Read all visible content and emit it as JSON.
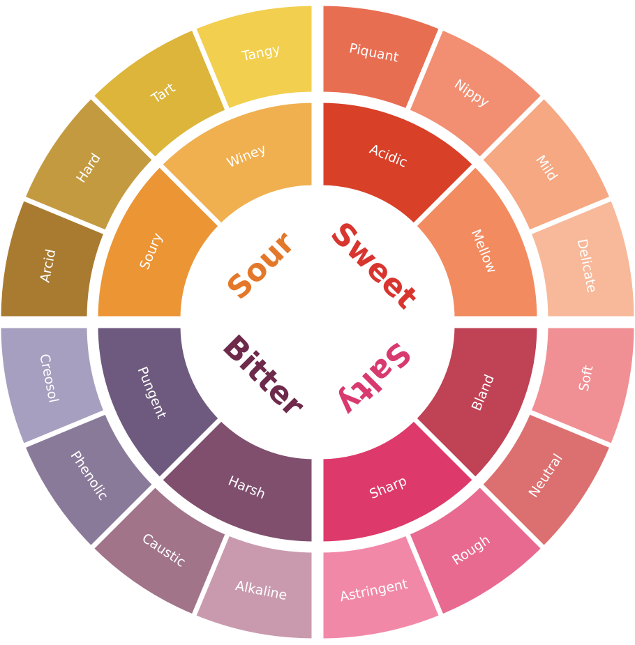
{
  "quadrants": [
    {
      "name": "Sweet",
      "color": "#d8352f",
      "inner": [
        {
          "label": "Acidic",
          "color": "#d84028"
        },
        {
          "label": "Mellow",
          "color": "#f28b60"
        }
      ],
      "outer": [
        {
          "label": "Piquant",
          "color": "#e86e52"
        },
        {
          "label": "Nippy",
          "color": "#f28e72"
        },
        {
          "label": "Mild",
          "color": "#f5a882"
        },
        {
          "label": "Delicate",
          "color": "#f7b99a"
        }
      ]
    },
    {
      "name": "Salty",
      "color": "#d83a70",
      "inner": [
        {
          "label": "Bland",
          "color": "#c04255"
        },
        {
          "label": "Sharp",
          "color": "#dd3a6b"
        }
      ],
      "outer": [
        {
          "label": "Soft",
          "color": "#f09094"
        },
        {
          "label": "Neutral",
          "color": "#dc7070"
        },
        {
          "label": "Rough",
          "color": "#e86a90"
        },
        {
          "label": "Astringent",
          "color": "#f288a8"
        }
      ]
    },
    {
      "name": "Bitter",
      "color": "#6e2a4a",
      "inner": [
        {
          "label": "Harsh",
          "color": "#804f6e"
        },
        {
          "label": "Pungent",
          "color": "#6e5a7e"
        }
      ],
      "outer": [
        {
          "label": "Alkaline",
          "color": "#c99aae"
        },
        {
          "label": "Caustic",
          "color": "#a1748a"
        },
        {
          "label": "Phenolic",
          "color": "#8a7a9a"
        },
        {
          "label": "Creosol",
          "color": "#a79fbf"
        }
      ]
    },
    {
      "name": "Sour",
      "color": "#e4782a",
      "inner": [
        {
          "label": "Soury",
          "color": "#ec9535"
        },
        {
          "label": "Winey",
          "color": "#f0b050"
        }
      ],
      "outer": [
        {
          "label": "Arcid",
          "color": "#a97b30"
        },
        {
          "label": "Hard",
          "color": "#c49a40"
        },
        {
          "label": "Tart",
          "color": "#dcb53a"
        },
        {
          "label": "Tangy",
          "color": "#f2cf4e"
        }
      ]
    }
  ]
}
